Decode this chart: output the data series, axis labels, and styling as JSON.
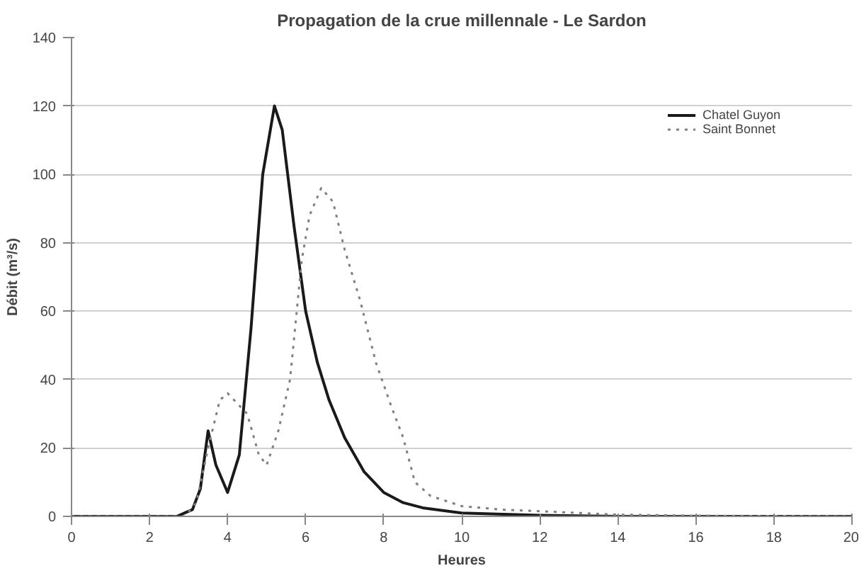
{
  "chart_data": {
    "type": "line",
    "title": "Propagation de la crue millennale - Le Sardon",
    "xlabel": "Heures",
    "ylabel": "Débit (m³/s)",
    "xlim": [
      0,
      20
    ],
    "xticks": [
      0,
      2,
      4,
      6,
      8,
      10,
      12,
      14,
      16,
      18,
      20
    ],
    "ylim": [
      0,
      140
    ],
    "yticks": [
      0,
      20,
      40,
      60,
      80,
      100,
      120,
      140
    ],
    "grid": "y",
    "legend": "top right",
    "marker": "none",
    "series": [
      {
        "name": "Chatel Guyon",
        "color": "#1a1a1a",
        "line_style": "solid",
        "x": [
          0,
          2.7,
          2.9,
          3.1,
          3.3,
          3.5,
          3.7,
          4.0,
          4.3,
          4.6,
          4.9,
          5.2,
          5.4,
          5.7,
          6.0,
          6.3,
          6.6,
          7.0,
          7.5,
          8.0,
          8.5,
          9.0,
          10,
          12,
          14,
          20
        ],
        "values": [
          0,
          0,
          1,
          2,
          8,
          25,
          15,
          7,
          18,
          55,
          100,
          120,
          113,
          85,
          60,
          45,
          34,
          23,
          13,
          7,
          4,
          2.5,
          1,
          0.3,
          0,
          0
        ]
      },
      {
        "name": "Saint Bonnet",
        "color": "#808080",
        "line_style": "dotted",
        "x": [
          0,
          2.9,
          3.2,
          3.5,
          3.8,
          4.0,
          4.5,
          4.8,
          5.0,
          5.3,
          5.6,
          5.9,
          6.1,
          6.4,
          6.7,
          7.0,
          7.4,
          7.8,
          8.2,
          8.5,
          8.8,
          9.2,
          10,
          11,
          12,
          14,
          16,
          20
        ],
        "values": [
          0,
          0,
          4,
          20,
          34,
          36,
          30,
          18,
          15,
          25,
          40,
          75,
          88,
          96,
          92,
          78,
          63,
          45,
          32,
          23,
          10,
          6,
          3,
          2,
          1.5,
          0.5,
          0.2,
          0
        ]
      }
    ]
  }
}
